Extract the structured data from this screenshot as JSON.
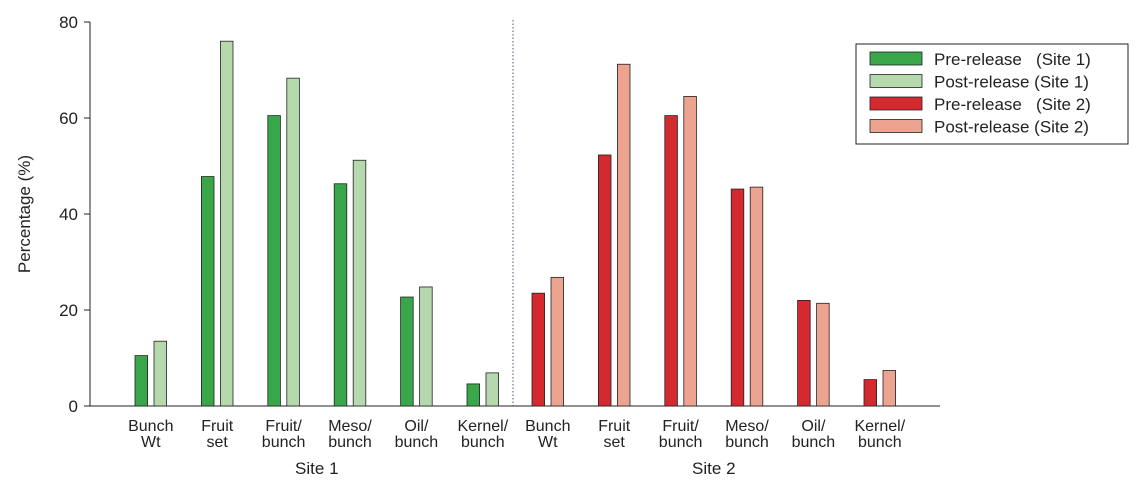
{
  "chart_data": {
    "type": "bar",
    "title": "",
    "ylabel": "Percentage (%)",
    "ylim": [
      0,
      80
    ],
    "yticks": [
      0,
      20,
      40,
      60,
      80
    ],
    "grid": false,
    "legend_position": "top-right",
    "groups": [
      {
        "label": "Site 1",
        "categories": [
          [
            "Bunch",
            "Wt"
          ],
          [
            "Fruit",
            "set"
          ],
          [
            "Fruit/",
            "bunch"
          ],
          [
            "Meso/",
            "bunch"
          ],
          [
            "Oil/",
            "bunch"
          ],
          [
            "Kernel/",
            "bunch"
          ]
        ],
        "series": [
          {
            "name": "Pre-release (Site 1)",
            "color": "#3aa64a",
            "values": [
              10.5,
              47.8,
              60.5,
              46.3,
              22.7,
              4.6
            ]
          },
          {
            "name": "Post-release (Site 1)",
            "color": "#b5d9ad",
            "values": [
              13.5,
              76.0,
              68.3,
              51.2,
              24.8,
              6.9
            ]
          }
        ]
      },
      {
        "label": "Site 2",
        "categories": [
          [
            "Bunch",
            "Wt"
          ],
          [
            "Fruit",
            "set"
          ],
          [
            "Fruit/",
            "bunch"
          ],
          [
            "Meso/",
            "bunch"
          ],
          [
            "Oil/",
            "bunch"
          ],
          [
            "Kernel/",
            "bunch"
          ]
        ],
        "series": [
          {
            "name": "Pre-release (Site 2)",
            "color": "#d42a2f",
            "values": [
              23.5,
              52.3,
              60.5,
              45.2,
              22.0,
              5.5
            ]
          },
          {
            "name": "Post-release (Site 2)",
            "color": "#eca38f",
            "values": [
              26.8,
              71.2,
              64.5,
              45.6,
              21.4,
              7.4
            ]
          }
        ]
      }
    ],
    "legend": [
      {
        "label": "Pre-release   (Site 1)",
        "color": "#3aa64a"
      },
      {
        "label": "Post-release (Site 1)",
        "color": "#b5d9ad"
      },
      {
        "label": "Pre-release   (Site 2)",
        "color": "#d42a2f"
      },
      {
        "label": "Post-release (Site 2)",
        "color": "#eca38f"
      }
    ]
  }
}
